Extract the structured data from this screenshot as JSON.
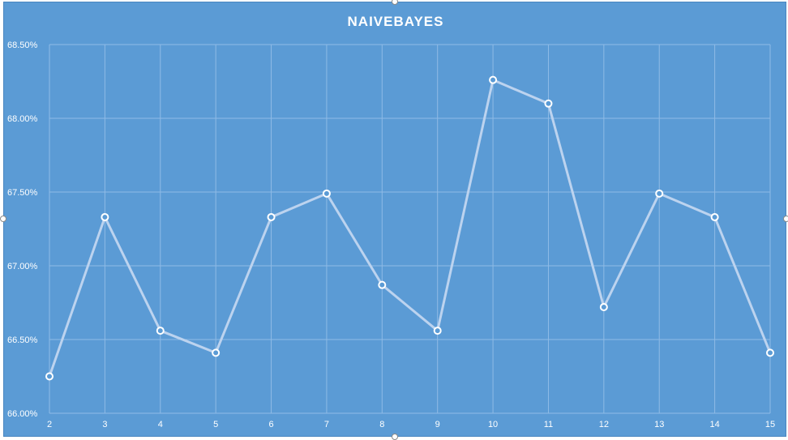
{
  "chart_data": {
    "type": "line",
    "title": "NAIVEBAYES",
    "x": [
      2,
      3,
      4,
      5,
      6,
      7,
      8,
      9,
      10,
      11,
      12,
      13,
      14,
      15
    ],
    "x_tick_labels": [
      "2",
      "3",
      "4",
      "5",
      "6",
      "7",
      "8",
      "9",
      "10",
      "11",
      "12",
      "13",
      "14",
      "15"
    ],
    "series": [
      {
        "values": [
          66.25,
          67.33,
          66.56,
          66.41,
          67.33,
          67.49,
          66.87,
          66.56,
          68.26,
          68.1,
          66.72,
          67.49,
          67.33,
          66.41
        ]
      }
    ],
    "y_ticks": [
      66.0,
      66.5,
      67.0,
      67.5,
      68.0,
      68.5
    ],
    "y_tick_labels": [
      "66.00%",
      "66.50%",
      "67.00%",
      "67.50%",
      "68.00%",
      "68.50%"
    ],
    "ylim": [
      66.0,
      68.5
    ],
    "xlabel": "",
    "ylabel": "",
    "grid": true,
    "legend": "none",
    "colors": {
      "background": "#5b9bd5",
      "line": "#bcd3ef",
      "marker_fill": "#5b9bd5",
      "marker_stroke": "#ffffff",
      "grid": "#8fbbe6",
      "text": "#ffffff"
    }
  }
}
